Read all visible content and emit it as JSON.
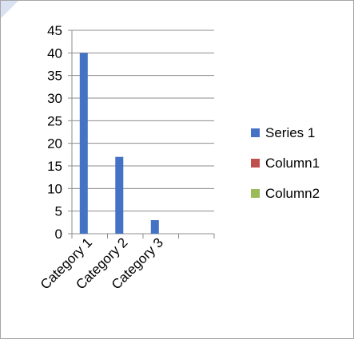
{
  "chart_data": {
    "type": "bar",
    "categories": [
      "Category 1",
      "Category 2",
      "Category 3",
      ""
    ],
    "series": [
      {
        "name": "Series 1",
        "values": [
          40,
          17,
          3,
          null
        ],
        "color": "#4472c4"
      },
      {
        "name": "Column1",
        "values": [
          null,
          null,
          null,
          null
        ],
        "color": "#c0504d"
      },
      {
        "name": "Column2",
        "values": [
          null,
          null,
          null,
          null
        ],
        "color": "#9bbb59"
      }
    ],
    "ylim": [
      0,
      45
    ],
    "yticks": [
      0,
      5,
      10,
      15,
      20,
      25,
      30,
      35,
      40,
      45
    ],
    "grid": true,
    "legend_position": "right"
  }
}
